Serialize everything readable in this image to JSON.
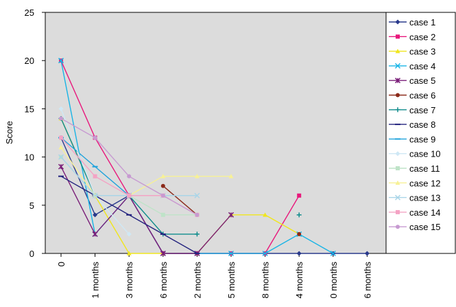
{
  "chart_data": {
    "type": "line",
    "ylabel": "Score",
    "ylim": [
      0,
      25
    ],
    "yticks": [
      0,
      5,
      10,
      15,
      20,
      25
    ],
    "categories": [
      "0",
      "1 months",
      "3 months",
      "6 months",
      "2 months",
      "5 months",
      "8 months",
      "4 months",
      "0 months",
      "6 months"
    ],
    "grid": false,
    "legend_position": "right",
    "plot_background": "#dcdcdc",
    "series": [
      {
        "name": "case 1",
        "color": "#2a3a8c",
        "marker": "diamond",
        "values": [
          12,
          4,
          6,
          0,
          0,
          0,
          0,
          0,
          0,
          0
        ]
      },
      {
        "name": "case 2",
        "color": "#e8187c",
        "marker": "square",
        "values": [
          20,
          12,
          6,
          0,
          0,
          0,
          0,
          6,
          null,
          null
        ]
      },
      {
        "name": "case 3",
        "color": "#f0e61e",
        "marker": "triangle",
        "values": [
          14,
          6,
          0,
          0,
          0,
          4,
          4,
          2,
          null,
          null
        ]
      },
      {
        "name": "case 4",
        "color": "#17b4e6",
        "marker": "x",
        "values": [
          20,
          2,
          6,
          0,
          0,
          0,
          0,
          2,
          0,
          null
        ]
      },
      {
        "name": "case 5",
        "color": "#7a1e78",
        "marker": "star",
        "values": [
          9,
          2,
          6,
          0,
          0,
          4,
          null,
          null,
          null,
          null
        ]
      },
      {
        "name": "case 6",
        "color": "#8b2a1a",
        "marker": "circle",
        "values": [
          null,
          null,
          null,
          7,
          4,
          null,
          null,
          2,
          null,
          null
        ]
      },
      {
        "name": "case 7",
        "color": "#0e8b8b",
        "marker": "plus",
        "values": [
          14,
          6,
          6,
          2,
          2,
          null,
          null,
          4,
          null,
          null
        ]
      },
      {
        "name": "case 8",
        "color": "#23237e",
        "marker": "dash",
        "values": [
          8,
          6,
          4,
          2,
          0,
          null,
          null,
          null,
          null,
          null
        ]
      },
      {
        "name": "case 9",
        "color": "#1ea2dc",
        "marker": "dash",
        "values": [
          12,
          9,
          6,
          null,
          null,
          null,
          null,
          null,
          null,
          null
        ]
      },
      {
        "name": "case 10",
        "color": "#cfe8f5",
        "marker": "diamond",
        "values": [
          15,
          6,
          2,
          null,
          null,
          null,
          null,
          null,
          null,
          null
        ]
      },
      {
        "name": "case 11",
        "color": "#bfe3c8",
        "marker": "square",
        "values": [
          10,
          6,
          6,
          4,
          4,
          null,
          null,
          null,
          null,
          null
        ]
      },
      {
        "name": "case 12",
        "color": "#f7f196",
        "marker": "triangle",
        "values": [
          11,
          6,
          6,
          8,
          8,
          8,
          null,
          null,
          null,
          null
        ]
      },
      {
        "name": "case 13",
        "color": "#a9d5e8",
        "marker": "x",
        "values": [
          10,
          6,
          6,
          6,
          6,
          null,
          null,
          null,
          null,
          null
        ]
      },
      {
        "name": "case 14",
        "color": "#f4a3c4",
        "marker": "square",
        "values": [
          12,
          8,
          6,
          6,
          4,
          null,
          null,
          null,
          null,
          null
        ]
      },
      {
        "name": "case 15",
        "color": "#c79ad1",
        "marker": "circle",
        "values": [
          14,
          12,
          8,
          6,
          4,
          null,
          null,
          null,
          null,
          null
        ]
      }
    ]
  }
}
